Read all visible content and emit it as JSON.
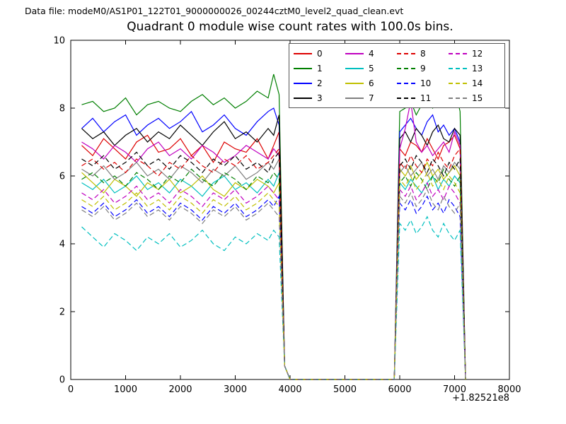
{
  "figure": {
    "header": "Data file: modeM0/AS1P01_122T01_9000000026_00244cztM0_level2_quad_clean.evt",
    "title": "Quadrant 0 module wise count rates with 100.0s bins.",
    "x_offset_label": "+1.82521e8",
    "background_color": "#ffffff",
    "frame_color": "#000000"
  },
  "chart_data": {
    "type": "line",
    "title": "Quadrant 0 module wise count rates with 100.0s bins.",
    "xlabel": "",
    "ylabel": "",
    "xlim": [
      0,
      8000
    ],
    "ylim": [
      0,
      10
    ],
    "xticks": [
      0,
      1000,
      2000,
      3000,
      4000,
      5000,
      6000,
      7000,
      8000
    ],
    "yticks": [
      0,
      2,
      4,
      6,
      8,
      10
    ],
    "x_axis_offset": "+1.82521e8",
    "grid": false,
    "legend_position": "upper center-right, 4 columns",
    "x": [
      200,
      400,
      600,
      800,
      1000,
      1200,
      1400,
      1600,
      1800,
      2000,
      2200,
      2400,
      2600,
      2800,
      3000,
      3200,
      3400,
      3600,
      3700,
      3800,
      3900,
      4000,
      5800,
      5900,
      6000,
      6100,
      6200,
      6300,
      6400,
      6500,
      6600,
      6700,
      6800,
      6900,
      7000,
      7100,
      7200
    ],
    "series": [
      {
        "label": "0",
        "color": "#dd0000",
        "dash": false,
        "values": [
          6.9,
          6.6,
          7.1,
          6.8,
          6.5,
          7.0,
          7.2,
          6.7,
          6.8,
          7.1,
          6.6,
          6.9,
          6.4,
          7.0,
          6.8,
          6.7,
          7.1,
          6.5,
          6.9,
          7.3,
          0.4,
          0,
          0,
          0,
          6.8,
          6.6,
          7.0,
          6.9,
          6.7,
          7.1,
          6.8,
          6.5,
          6.9,
          7.0,
          7.2,
          6.8,
          0
        ]
      },
      {
        "label": "1",
        "color": "#007f00",
        "dash": false,
        "values": [
          8.1,
          8.2,
          7.9,
          8.0,
          8.3,
          7.8,
          8.1,
          8.2,
          8.0,
          7.9,
          8.2,
          8.4,
          8.1,
          8.3,
          8.0,
          8.2,
          8.5,
          8.3,
          9.0,
          8.4,
          0.4,
          0,
          0,
          0,
          7.9,
          8.0,
          8.2,
          7.8,
          8.1,
          8.3,
          8.0,
          8.2,
          8.4,
          8.1,
          8.6,
          7.9,
          0
        ]
      },
      {
        "label": "2",
        "color": "#0000ff",
        "dash": false,
        "values": [
          7.4,
          7.7,
          7.3,
          7.6,
          7.8,
          7.2,
          7.5,
          7.7,
          7.4,
          7.6,
          7.9,
          7.3,
          7.5,
          7.8,
          7.4,
          7.2,
          7.6,
          7.9,
          8.0,
          7.5,
          0.4,
          0,
          0,
          0,
          7.3,
          7.5,
          7.7,
          7.4,
          7.2,
          7.6,
          7.8,
          7.3,
          7.5,
          7.2,
          7.4,
          7.0,
          0
        ]
      },
      {
        "label": "3",
        "color": "#000000",
        "dash": false,
        "values": [
          7.4,
          7.1,
          7.3,
          6.9,
          7.2,
          7.4,
          7.0,
          7.3,
          7.1,
          7.5,
          7.2,
          6.9,
          7.3,
          7.6,
          7.1,
          7.3,
          7.0,
          7.4,
          7.2,
          7.8,
          0.4,
          0,
          0,
          0,
          7.1,
          7.3,
          7.0,
          7.4,
          7.2,
          6.9,
          7.3,
          7.5,
          7.1,
          7.0,
          7.4,
          7.2,
          0
        ]
      },
      {
        "label": "4",
        "color": "#bf00bf",
        "dash": false,
        "values": [
          7.0,
          6.8,
          6.5,
          6.9,
          6.7,
          6.4,
          6.8,
          7.0,
          6.6,
          6.8,
          6.5,
          6.9,
          6.7,
          6.4,
          6.6,
          6.9,
          6.7,
          6.5,
          6.8,
          6.6,
          0.4,
          0,
          0,
          0,
          6.8,
          7.4,
          8.2,
          7.0,
          6.7,
          6.9,
          6.6,
          6.8,
          7.0,
          6.7,
          7.3,
          6.9,
          0
        ]
      },
      {
        "label": "5",
        "color": "#00bfbf",
        "dash": false,
        "values": [
          5.8,
          5.6,
          5.9,
          5.5,
          5.7,
          6.0,
          5.6,
          5.8,
          5.5,
          5.9,
          5.7,
          5.4,
          5.8,
          6.0,
          5.6,
          5.8,
          5.5,
          5.9,
          5.7,
          6.1,
          0.4,
          0,
          0,
          0,
          5.8,
          5.6,
          5.9,
          5.7,
          5.5,
          5.8,
          6.0,
          5.6,
          5.9,
          5.7,
          6.0,
          5.8,
          0
        ]
      },
      {
        "label": "6",
        "color": "#bfbf00",
        "dash": false,
        "values": [
          6.1,
          5.8,
          5.5,
          5.9,
          5.7,
          5.4,
          5.8,
          5.6,
          5.9,
          5.5,
          5.7,
          6.0,
          5.6,
          5.4,
          5.8,
          5.6,
          5.9,
          5.7,
          5.5,
          5.8,
          0.4,
          0,
          0,
          0,
          6.2,
          6.0,
          6.3,
          5.9,
          6.1,
          6.4,
          6.0,
          6.2,
          5.9,
          6.1,
          6.3,
          6.0,
          0
        ]
      },
      {
        "label": "7",
        "color": "#7f7f7f",
        "dash": false,
        "values": [
          6.2,
          6.0,
          6.3,
          5.9,
          6.1,
          6.4,
          6.0,
          6.2,
          5.9,
          6.3,
          6.1,
          5.8,
          6.2,
          6.0,
          6.3,
          5.9,
          6.1,
          6.4,
          6.2,
          6.5,
          0.4,
          0,
          0,
          0,
          6.1,
          6.3,
          6.0,
          6.2,
          6.4,
          6.0,
          6.2,
          5.9,
          6.3,
          6.1,
          6.4,
          6.2,
          0
        ]
      },
      {
        "label": "8",
        "color": "#dd0000",
        "dash": true,
        "values": [
          6.3,
          6.5,
          6.2,
          6.4,
          6.1,
          6.5,
          6.3,
          6.0,
          6.4,
          6.2,
          6.6,
          6.3,
          6.1,
          6.5,
          6.3,
          6.6,
          6.2,
          6.4,
          6.6,
          6.8,
          0.4,
          0,
          0,
          0,
          6.4,
          6.2,
          6.6,
          6.3,
          6.1,
          6.5,
          6.3,
          6.7,
          6.4,
          6.2,
          6.6,
          6.8,
          0
        ]
      },
      {
        "label": "9",
        "color": "#007f00",
        "dash": true,
        "values": [
          5.9,
          6.1,
          5.8,
          6.0,
          5.7,
          6.1,
          5.9,
          5.6,
          6.0,
          5.8,
          6.2,
          5.9,
          5.7,
          6.1,
          5.9,
          5.6,
          6.0,
          5.8,
          6.1,
          5.9,
          0.4,
          0,
          0,
          0,
          5.8,
          6.0,
          5.7,
          6.1,
          5.9,
          5.6,
          6.0,
          5.8,
          6.2,
          5.9,
          5.7,
          6.0,
          0
        ]
      },
      {
        "label": "10",
        "color": "#0000ff",
        "dash": true,
        "values": [
          5.1,
          4.9,
          5.2,
          4.8,
          5.0,
          5.3,
          4.9,
          5.1,
          4.8,
          5.2,
          5.0,
          4.7,
          5.1,
          4.9,
          5.2,
          4.8,
          5.0,
          5.3,
          5.1,
          5.4,
          0.4,
          0,
          0,
          0,
          5.2,
          5.0,
          5.3,
          4.9,
          5.1,
          5.4,
          5.0,
          5.2,
          4.9,
          5.3,
          5.1,
          4.8,
          0
        ]
      },
      {
        "label": "11",
        "color": "#000000",
        "dash": true,
        "values": [
          6.5,
          6.3,
          6.6,
          6.2,
          6.4,
          6.7,
          6.3,
          6.5,
          6.2,
          6.6,
          6.4,
          6.1,
          6.5,
          6.3,
          6.6,
          6.2,
          6.4,
          6.1,
          6.5,
          6.7,
          0.4,
          0,
          0,
          0,
          6.3,
          6.5,
          6.2,
          6.6,
          6.4,
          6.1,
          6.5,
          6.3,
          6.0,
          6.4,
          6.2,
          6.5,
          0
        ]
      },
      {
        "label": "12",
        "color": "#bf00bf",
        "dash": true,
        "values": [
          5.5,
          5.3,
          5.6,
          5.2,
          5.4,
          5.7,
          5.3,
          5.5,
          5.2,
          5.6,
          5.4,
          5.1,
          5.5,
          5.3,
          5.6,
          5.2,
          5.4,
          5.7,
          5.5,
          5.3,
          0.4,
          0,
          0,
          0,
          5.6,
          5.4,
          5.7,
          5.3,
          5.5,
          5.8,
          5.4,
          5.6,
          5.3,
          5.7,
          5.5,
          5.2,
          0
        ]
      },
      {
        "label": "13",
        "color": "#00bfbf",
        "dash": true,
        "values": [
          4.5,
          4.2,
          3.9,
          4.3,
          4.1,
          3.8,
          4.2,
          4.0,
          4.3,
          3.9,
          4.1,
          4.4,
          4.0,
          3.8,
          4.2,
          4.0,
          4.3,
          4.1,
          4.4,
          4.2,
          0.4,
          0,
          0,
          0,
          4.6,
          4.4,
          4.7,
          4.3,
          4.5,
          4.8,
          4.4,
          4.2,
          4.6,
          4.3,
          4.1,
          4.4,
          0
        ]
      },
      {
        "label": "14",
        "color": "#bfbf00",
        "dash": true,
        "values": [
          5.3,
          5.1,
          5.4,
          5.0,
          5.2,
          5.5,
          5.1,
          5.3,
          5.0,
          5.4,
          5.2,
          4.9,
          5.3,
          5.1,
          5.4,
          5.0,
          5.2,
          5.5,
          5.3,
          5.1,
          0.4,
          0,
          0,
          0,
          5.9,
          5.7,
          6.0,
          5.6,
          5.8,
          6.1,
          5.7,
          5.9,
          5.6,
          6.0,
          5.8,
          5.5,
          0
        ]
      },
      {
        "label": "15",
        "color": "#7f7f7f",
        "dash": true,
        "values": [
          5.0,
          4.8,
          5.1,
          4.7,
          4.9,
          5.2,
          4.8,
          5.0,
          4.7,
          5.1,
          4.9,
          4.6,
          5.0,
          4.8,
          5.1,
          4.7,
          4.9,
          5.2,
          5.0,
          4.8,
          0.4,
          0,
          0,
          0,
          5.4,
          5.2,
          5.5,
          5.1,
          5.3,
          5.6,
          5.2,
          5.0,
          5.4,
          5.1,
          4.9,
          5.2,
          0
        ]
      }
    ]
  }
}
